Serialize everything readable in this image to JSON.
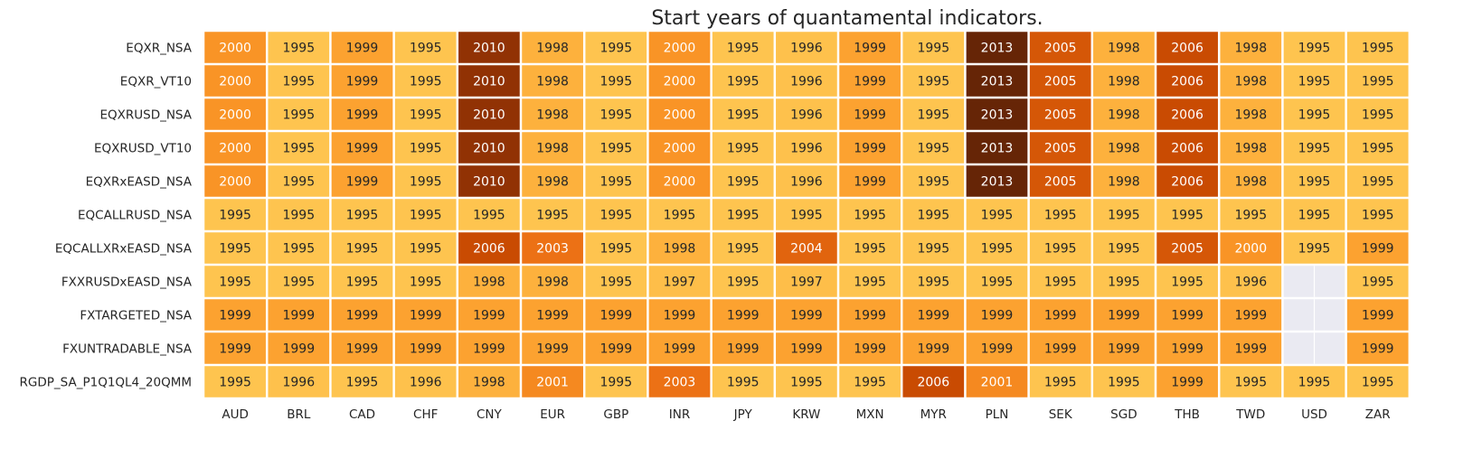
{
  "chart_data": {
    "type": "heatmap",
    "title": "Start years of quantamental indicators.",
    "xlabel": "",
    "ylabel": "",
    "columns": [
      "AUD",
      "BRL",
      "CAD",
      "CHF",
      "CNY",
      "EUR",
      "GBP",
      "INR",
      "JPY",
      "KRW",
      "MXN",
      "MYR",
      "PLN",
      "SEK",
      "SGD",
      "THB",
      "TWD",
      "USD",
      "ZAR"
    ],
    "rows": [
      "EQXR_NSA",
      "EQXR_VT10",
      "EQXRUSD_NSA",
      "EQXRUSD_VT10",
      "EQXRxEASD_NSA",
      "EQCALLRUSD_NSA",
      "EQCALLXRxEASD_NSA",
      "FXXRUSDxEASD_NSA",
      "FXTARGETED_NSA",
      "FXUNTRADABLE_NSA",
      "RGDP_SA_P1Q1QL4_20QMM"
    ],
    "values": [
      [
        2000,
        1995,
        1999,
        1995,
        2010,
        1998,
        1995,
        2000,
        1995,
        1996,
        1999,
        1995,
        2013,
        2005,
        1998,
        2006,
        1998,
        1995,
        1995
      ],
      [
        2000,
        1995,
        1999,
        1995,
        2010,
        1998,
        1995,
        2000,
        1995,
        1996,
        1999,
        1995,
        2013,
        2005,
        1998,
        2006,
        1998,
        1995,
        1995
      ],
      [
        2000,
        1995,
        1999,
        1995,
        2010,
        1998,
        1995,
        2000,
        1995,
        1996,
        1999,
        1995,
        2013,
        2005,
        1998,
        2006,
        1998,
        1995,
        1995
      ],
      [
        2000,
        1995,
        1999,
        1995,
        2010,
        1998,
        1995,
        2000,
        1995,
        1996,
        1999,
        1995,
        2013,
        2005,
        1998,
        2006,
        1998,
        1995,
        1995
      ],
      [
        2000,
        1995,
        1999,
        1995,
        2010,
        1998,
        1995,
        2000,
        1995,
        1996,
        1999,
        1995,
        2013,
        2005,
        1998,
        2006,
        1998,
        1995,
        1995
      ],
      [
        1995,
        1995,
        1995,
        1995,
        1995,
        1995,
        1995,
        1995,
        1995,
        1995,
        1995,
        1995,
        1995,
        1995,
        1995,
        1995,
        1995,
        1995,
        1995
      ],
      [
        1995,
        1995,
        1995,
        1995,
        2006,
        2003,
        1995,
        1998,
        1995,
        2004,
        1995,
        1995,
        1995,
        1995,
        1995,
        2005,
        2000,
        1995,
        1999
      ],
      [
        1995,
        1995,
        1995,
        1995,
        1998,
        1998,
        1995,
        1997,
        1995,
        1997,
        1995,
        1995,
        1995,
        1995,
        1995,
        1995,
        1996,
        null,
        1995
      ],
      [
        1999,
        1999,
        1999,
        1999,
        1999,
        1999,
        1999,
        1999,
        1999,
        1999,
        1999,
        1999,
        1999,
        1999,
        1999,
        1999,
        1999,
        null,
        1999
      ],
      [
        1999,
        1999,
        1999,
        1999,
        1999,
        1999,
        1999,
        1999,
        1999,
        1999,
        1999,
        1999,
        1999,
        1999,
        1999,
        1999,
        1999,
        null,
        1999
      ],
      [
        1995,
        1996,
        1995,
        1996,
        1998,
        2001,
        1995,
        2003,
        1995,
        1995,
        1995,
        2006,
        2001,
        1995,
        1995,
        1999,
        1995,
        1995,
        1995
      ]
    ],
    "colormap": "YlOrBr",
    "color_range": [
      1995,
      2013
    ],
    "colors": {
      "low": "#fec44f",
      "mid_low": "#fb9a29",
      "mid": "#ec7014",
      "mid_high": "#cc4c02",
      "high_mid": "#993404",
      "high": "#662506",
      "missing": "#eaeaf2",
      "grid": "#ffffff"
    },
    "annotations": true,
    "legend": "none",
    "grid": false
  }
}
